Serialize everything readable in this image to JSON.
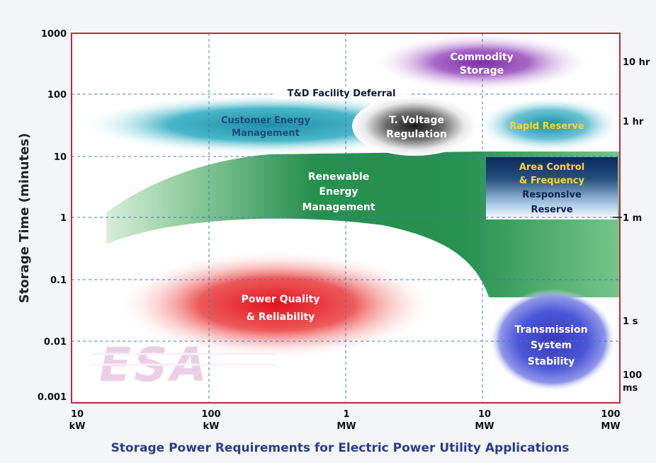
{
  "y_axis": {
    "title": "Storage Time  (minutes)",
    "ticks": [
      "1000",
      "100",
      "10",
      "1",
      "0.1",
      "0.01",
      "0.001"
    ]
  },
  "right_axis": {
    "ticks": [
      {
        "text": "10 hr"
      },
      {
        "text": "1 hr"
      },
      {
        "text": "1 m"
      },
      {
        "text": "1 s"
      },
      {
        "text": "100",
        "text2": "ms"
      }
    ]
  },
  "x_axis": {
    "title": "Storage Power Requirements for Electric Power Utility Applications",
    "ticks": [
      {
        "value": "10",
        "unit": "kW"
      },
      {
        "value": "100",
        "unit": "kW"
      },
      {
        "value": "1",
        "unit": "MW"
      },
      {
        "value": "10",
        "unit": "MW"
      },
      {
        "value": "100",
        "unit": "MW"
      }
    ]
  },
  "regions": {
    "commodity_storage": [
      "Commodity",
      "Storage"
    ],
    "td_deferral": "T&D Facility Deferral",
    "customer_energy": [
      "Customer Energy",
      "Management"
    ],
    "voltage_regulation": [
      "T. Voltage",
      "Regulation"
    ],
    "rapid_reserve": "Rapid Reserve",
    "area_control": [
      "Area Control",
      "& Frequency",
      "Responsive",
      "Reserve"
    ],
    "renewable": [
      "Renewable",
      "Energy",
      "Management"
    ],
    "power_quality": [
      "Power Quality",
      "& Reliability"
    ],
    "transmission": [
      "Transmission",
      "System",
      "Stability"
    ]
  },
  "logo": "ESA",
  "colors": {
    "frame": "#c0283c",
    "grid": "#3c78c8",
    "green": "#1f8a48",
    "red": "#e02828",
    "purple": "#8a3cb0",
    "teal": "#1ea0b4",
    "blue": "#2832c0",
    "dark_navy": "#0c2c5a",
    "gold": "#ffd23c",
    "axis_title": "#2a3c8c"
  }
}
